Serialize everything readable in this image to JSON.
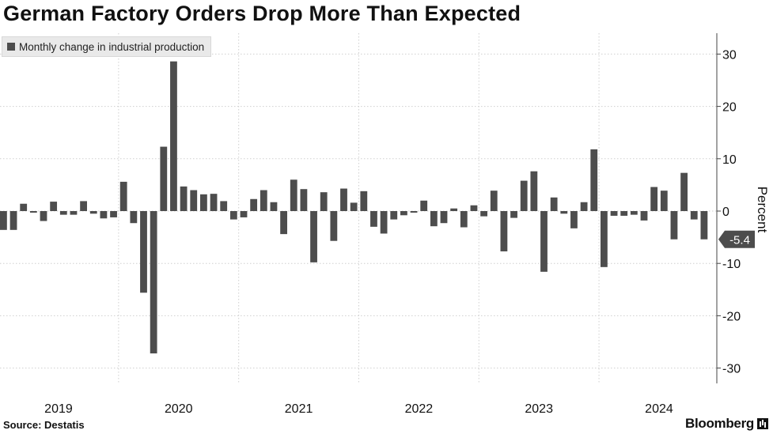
{
  "chart_data": {
    "type": "bar",
    "title": "German Factory Orders Drop More Than Expected",
    "legend": "Monthly change in industrial production",
    "ylabel": "Percent",
    "ylim": [
      -32,
      34
    ],
    "yticks": [
      30,
      20,
      10,
      0,
      -10,
      -20,
      -30
    ],
    "xlabels": [
      "2019",
      "2020",
      "2021",
      "2022",
      "2023",
      "2024"
    ],
    "values": [
      -3.6,
      -3.6,
      1.4,
      -0.3,
      -1.9,
      1.8,
      -0.7,
      -0.7,
      1.9,
      -0.5,
      -1.4,
      -1.2,
      5.6,
      -2.3,
      -15.6,
      -27.2,
      12.3,
      28.6,
      4.7,
      4.0,
      3.2,
      3.3,
      1.9,
      -1.6,
      -1.2,
      2.3,
      4.0,
      1.7,
      -4.4,
      6.0,
      4.2,
      -9.8,
      3.6,
      -5.7,
      4.3,
      1.6,
      3.8,
      -3.0,
      -4.3,
      -1.6,
      -0.8,
      -0.3,
      2.0,
      -2.9,
      -2.3,
      0.5,
      -3.1,
      1.1,
      -1.0,
      3.9,
      -7.7,
      -1.3,
      5.8,
      7.6,
      -11.6,
      2.6,
      -0.5,
      -3.3,
      1.7,
      11.8,
      -10.7,
      -0.9,
      -0.9,
      -0.7,
      -1.8,
      4.6,
      3.9,
      -5.4,
      7.3,
      -1.6,
      -5.4
    ],
    "last_value_label": "-5.4"
  },
  "source": "Source: Destatis",
  "brand": "Bloomberg",
  "colors": {
    "bar": "#4d4d4d",
    "grid": "#cfcfcf",
    "axis": "#444444",
    "flag": "#4d4d4d"
  }
}
